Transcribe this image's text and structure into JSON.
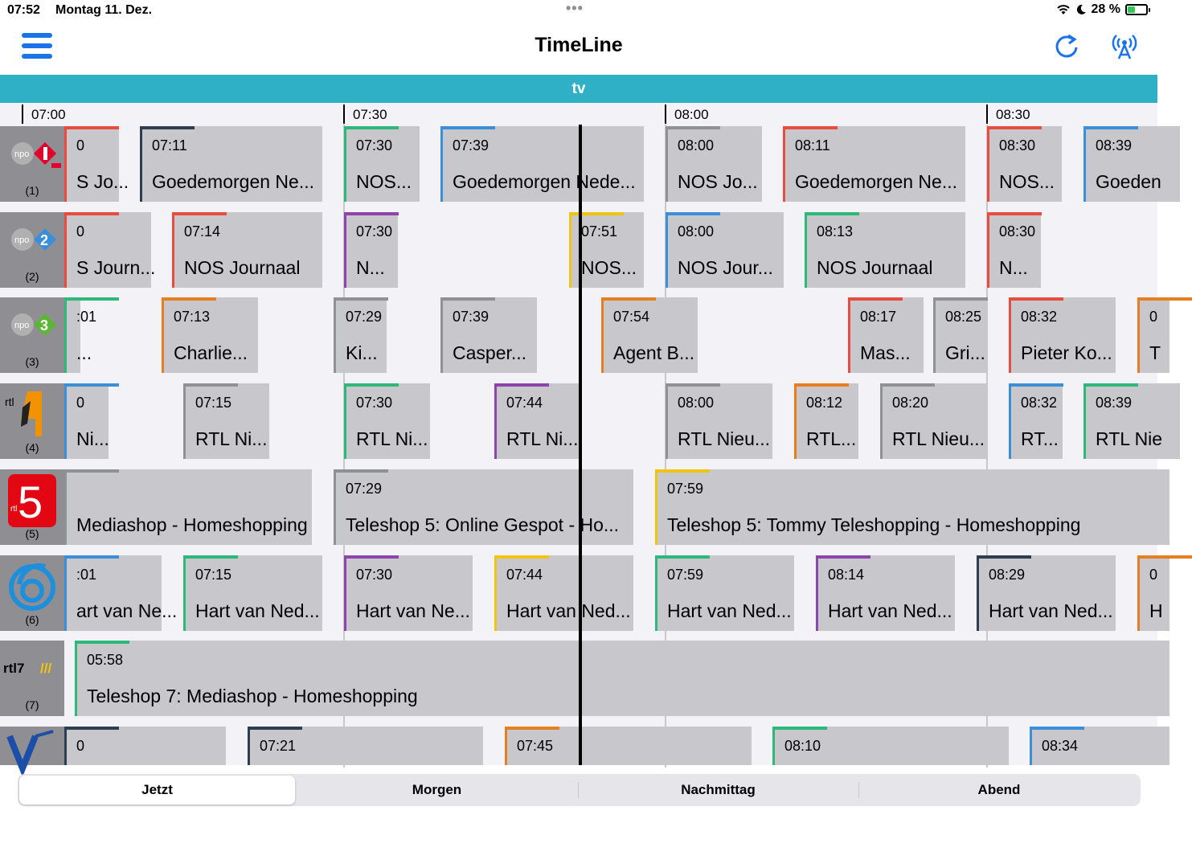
{
  "status": {
    "time": "07:52",
    "date": "Montag 11. Dez.",
    "dots": "•••",
    "battery": "28 %"
  },
  "nav": {
    "title": "TimeLine",
    "menu_icon": "hamburger-icon",
    "refresh_icon": "refresh-icon",
    "antenna_icon": "antenna-icon"
  },
  "band": {
    "label": "tv"
  },
  "ticks": [
    "07:00",
    "07:30",
    "08:00",
    "08:30"
  ],
  "colors": {
    "accent": "#1a73e8",
    "band": "#30b0c7",
    "cell": "#c7c7cc",
    "red": "#e74c3c",
    "blue": "#3b8fd9",
    "green": "#2eb87a",
    "purple": "#8e44ad",
    "orange": "#e67e22",
    "yellow": "#f1c40f",
    "grey": "#8e9196",
    "dark": "#2c3e50"
  },
  "channels": [
    {
      "number": "(1)",
      "logo": "npo1-logo",
      "programs": [
        {
          "time": "0",
          "title": "S Jo..."
        },
        {
          "time": "07:11",
          "title": "Goedemorgen Ne..."
        },
        {
          "time": "07:30",
          "title": "NOS..."
        },
        {
          "time": "07:39",
          "title": "Goedemorgen Nede..."
        },
        {
          "time": "08:00",
          "title": "NOS Jo..."
        },
        {
          "time": "08:11",
          "title": "Goedemorgen Ne..."
        },
        {
          "time": "08:30",
          "title": "NOS..."
        },
        {
          "time": "08:39",
          "title": "Goeden"
        }
      ]
    },
    {
      "number": "(2)",
      "logo": "npo2-logo",
      "programs": [
        {
          "time": "0",
          "title": "S Journ..."
        },
        {
          "time": "07:14",
          "title": "NOS Journaal"
        },
        {
          "time": "07:30",
          "title": "N..."
        },
        {
          "time": "07:51",
          "title": "NOS..."
        },
        {
          "time": "08:00",
          "title": "NOS Jour..."
        },
        {
          "time": "08:13",
          "title": "NOS Journaal"
        },
        {
          "time": "08:30",
          "title": "N..."
        }
      ]
    },
    {
      "number": "(3)",
      "logo": "npo3-logo",
      "programs": [
        {
          "time": ":01",
          "title": "..."
        },
        {
          "time": "07:13",
          "title": "Charlie..."
        },
        {
          "time": "07:29",
          "title": "Ki..."
        },
        {
          "time": "07:39",
          "title": "Casper..."
        },
        {
          "time": "07:54",
          "title": "Agent B..."
        },
        {
          "time": "08:17",
          "title": "Mas..."
        },
        {
          "time": "08:25",
          "title": "Gri..."
        },
        {
          "time": "08:32",
          "title": "Pieter Ko..."
        },
        {
          "time": "0",
          "title": "T"
        }
      ]
    },
    {
      "number": "(4)",
      "logo": "rtl4-logo",
      "programs": [
        {
          "time": "0",
          "title": "Ni..."
        },
        {
          "time": "07:15",
          "title": "RTL Ni..."
        },
        {
          "time": "07:30",
          "title": "RTL Ni..."
        },
        {
          "time": "07:44",
          "title": "RTL Ni..."
        },
        {
          "time": "08:00",
          "title": "RTL Nieu..."
        },
        {
          "time": "08:12",
          "title": "RTL..."
        },
        {
          "time": "08:20",
          "title": "RTL Nieu..."
        },
        {
          "time": "08:32",
          "title": "RT..."
        },
        {
          "time": "08:39",
          "title": "RTL Nie"
        }
      ]
    },
    {
      "number": "(5)",
      "logo": "rtl5-logo",
      "programs": [
        {
          "time": "",
          "title": "Mediashop - Homeshopping"
        },
        {
          "time": "07:29",
          "title": "Teleshop 5: Online Gespot - Ho..."
        },
        {
          "time": "07:59",
          "title": "Teleshop 5: Tommy Teleshopping - Homeshopping"
        }
      ]
    },
    {
      "number": "(6)",
      "logo": "sbs6-logo",
      "programs": [
        {
          "time": ":01",
          "title": "art van Ne..."
        },
        {
          "time": "07:15",
          "title": "Hart van Ned..."
        },
        {
          "time": "07:30",
          "title": "Hart van Ne..."
        },
        {
          "time": "07:44",
          "title": "Hart van Ned..."
        },
        {
          "time": "07:59",
          "title": "Hart van Ned..."
        },
        {
          "time": "08:14",
          "title": "Hart van Ned..."
        },
        {
          "time": "08:29",
          "title": "Hart van Ned..."
        },
        {
          "time": "0",
          "title": "H"
        }
      ]
    },
    {
      "number": "(7)",
      "logo": "rtl7-logo",
      "programs": [
        {
          "time": "05:58",
          "title": "Teleshop 7: Mediashop - Homeshopping"
        }
      ]
    },
    {
      "number": "",
      "logo": "veronica-logo",
      "programs": [
        {
          "time": "0",
          "title": ""
        },
        {
          "time": "07:21",
          "title": ""
        },
        {
          "time": "07:45",
          "title": ""
        },
        {
          "time": "08:10",
          "title": ""
        },
        {
          "time": "08:34",
          "title": ""
        }
      ]
    }
  ],
  "tabs": [
    "Jetzt",
    "Morgen",
    "Nachmittag",
    "Abend"
  ]
}
